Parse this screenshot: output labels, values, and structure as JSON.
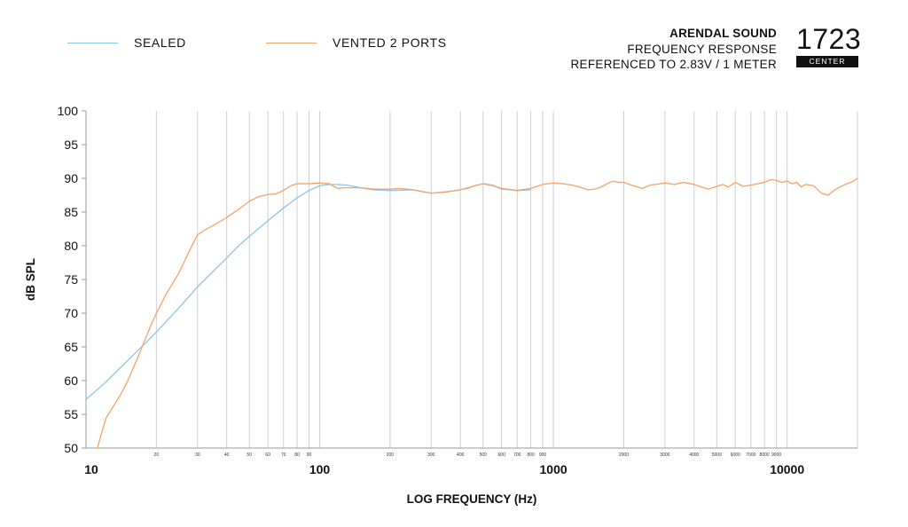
{
  "header": {
    "brand": "ARENDAL SOUND",
    "line1": "FREQUENCY RESPONSE",
    "line2": "REFERENCED TO 2.83V / 1 METER",
    "model": "1723",
    "badge": "CENTER"
  },
  "colors": {
    "sealed": "#8ec3e6",
    "vented": "#f2a36a",
    "grid": "#cfcfcf",
    "axis": "#9a9a9a"
  },
  "chart_data": {
    "type": "line",
    "xlabel": "LOG FREQUENCY (Hz)",
    "ylabel": "dB SPL",
    "x_scale": "log",
    "xlim": [
      10,
      20000
    ],
    "ylim": [
      50,
      100
    ],
    "grid": true,
    "legend_position": "top-left",
    "y_ticks": [
      50,
      55,
      60,
      65,
      70,
      75,
      80,
      85,
      90,
      95,
      100
    ],
    "x_major_ticks": [
      {
        "value": 10,
        "label": "10"
      },
      {
        "value": 100,
        "label": "100"
      },
      {
        "value": 1000,
        "label": "1000"
      },
      {
        "value": 10000,
        "label": "10000"
      }
    ],
    "x_minor_ticks": [
      {
        "value": 20,
        "label": "20"
      },
      {
        "value": 30,
        "label": "30"
      },
      {
        "value": 40,
        "label": "40"
      },
      {
        "value": 50,
        "label": "50"
      },
      {
        "value": 60,
        "label": "60"
      },
      {
        "value": 70,
        "label": "70"
      },
      {
        "value": 80,
        "label": "80"
      },
      {
        "value": 90,
        "label": "90"
      },
      {
        "value": 200,
        "label": "200"
      },
      {
        "value": 300,
        "label": "300"
      },
      {
        "value": 400,
        "label": "400"
      },
      {
        "value": 500,
        "label": "500"
      },
      {
        "value": 600,
        "label": "600"
      },
      {
        "value": 700,
        "label": "700"
      },
      {
        "value": 800,
        "label": "800"
      },
      {
        "value": 900,
        "label": "900"
      },
      {
        "value": 2000,
        "label": "2000"
      },
      {
        "value": 3000,
        "label": "3000"
      },
      {
        "value": 4000,
        "label": "4000"
      },
      {
        "value": 5000,
        "label": "5000"
      },
      {
        "value": 6000,
        "label": "6000"
      },
      {
        "value": 7000,
        "label": "7000"
      },
      {
        "value": 8000,
        "label": "8000"
      },
      {
        "value": 9000,
        "label": "9000"
      }
    ],
    "series": [
      {
        "name": "SEALED",
        "x": [
          10,
          12,
          15,
          18,
          20,
          25,
          30,
          35,
          40,
          45,
          50,
          60,
          70,
          80,
          90,
          100,
          110,
          120,
          130,
          150,
          170,
          200,
          250,
          300,
          350,
          400,
          450,
          500,
          550,
          600,
          700,
          800
        ],
        "y": [
          57.2,
          59.6,
          62.9,
          65.6,
          67.2,
          70.8,
          73.9,
          76.2,
          78.2,
          80.0,
          81.4,
          83.7,
          85.6,
          87.1,
          88.2,
          88.9,
          89.1,
          89.1,
          89.0,
          88.6,
          88.3,
          88.2,
          88.3,
          87.8,
          88.0,
          88.3,
          88.8,
          89.2,
          89.0,
          88.4,
          88.2,
          88.3
        ]
      },
      {
        "name": "VENTED 2 PORTS",
        "x": [
          11.2,
          11.6,
          12.2,
          13,
          14,
          15,
          16,
          17,
          18,
          19,
          20,
          22,
          25,
          28,
          30,
          32,
          35,
          40,
          45,
          50,
          55,
          60,
          65,
          70,
          75,
          80,
          90,
          100,
          110,
          115,
          120,
          130,
          150,
          170,
          200,
          220,
          250,
          300,
          350,
          400,
          430,
          460,
          500,
          550,
          600,
          700,
          800,
          900,
          1000,
          1100,
          1200,
          1300,
          1400,
          1500,
          1600,
          1700,
          1800,
          1900,
          2000,
          2200,
          2400,
          2600,
          3000,
          3300,
          3600,
          4000,
          4300,
          4600,
          5000,
          5300,
          5600,
          6000,
          6500,
          7000,
          7500,
          8000,
          8500,
          9000,
          9500,
          10000,
          10500,
          11000,
          11500,
          12000,
          12500,
          13000,
          14000,
          15000,
          16000,
          17000,
          18000,
          19000,
          20000
        ],
        "y": [
          50.0,
          52.0,
          54.5,
          56.0,
          57.8,
          59.8,
          62.0,
          64.2,
          66.3,
          68.3,
          70.0,
          72.8,
          76.0,
          79.6,
          81.6,
          82.3,
          83.0,
          84.2,
          85.4,
          86.6,
          87.3,
          87.6,
          87.7,
          88.2,
          88.9,
          89.2,
          89.2,
          89.3,
          89.2,
          88.8,
          88.5,
          88.6,
          88.6,
          88.4,
          88.4,
          88.5,
          88.3,
          87.8,
          88.0,
          88.3,
          88.5,
          88.9,
          89.2,
          88.9,
          88.5,
          88.2,
          88.5,
          89.1,
          89.3,
          89.2,
          89.0,
          88.7,
          88.3,
          88.4,
          88.7,
          89.2,
          89.6,
          89.4,
          89.4,
          88.9,
          88.5,
          89.0,
          89.3,
          89.1,
          89.4,
          89.1,
          88.7,
          88.4,
          88.8,
          89.1,
          88.7,
          89.4,
          88.8,
          89.0,
          89.2,
          89.4,
          89.8,
          89.7,
          89.4,
          89.6,
          89.2,
          89.4,
          88.7,
          89.1,
          89.0,
          88.9,
          87.8,
          87.5,
          88.3,
          88.8,
          89.2,
          89.5,
          90.0
        ]
      }
    ]
  }
}
